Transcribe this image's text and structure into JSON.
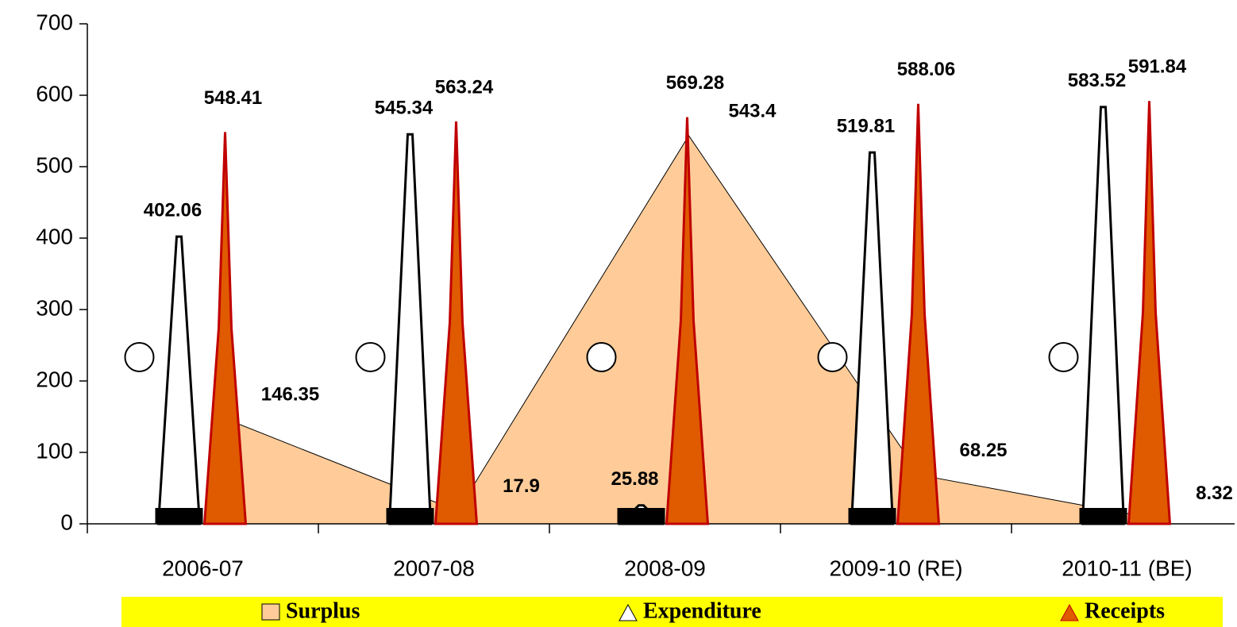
{
  "chart_data": {
    "type": "bar",
    "categories": [
      "2006-07",
      "2007-08",
      "2008-09",
      "2009-10 (RE)",
      "2010-11 (BE)"
    ],
    "series": [
      {
        "name": "Surplus",
        "color": "#ffcc99",
        "values": [
          146.35,
          17.9,
          543.4,
          68.25,
          8.32
        ]
      },
      {
        "name": "Expenditure",
        "color": "#000000",
        "values": [
          402.06,
          545.34,
          25.88,
          519.81,
          583.52
        ]
      },
      {
        "name": "Receipts",
        "color": "#e05a00",
        "values": [
          548.41,
          563.24,
          569.28,
          588.06,
          591.84
        ]
      }
    ],
    "ylim": [
      0,
      700
    ],
    "yticks": [
      0,
      100,
      200,
      300,
      400,
      500,
      600,
      700
    ]
  }
}
